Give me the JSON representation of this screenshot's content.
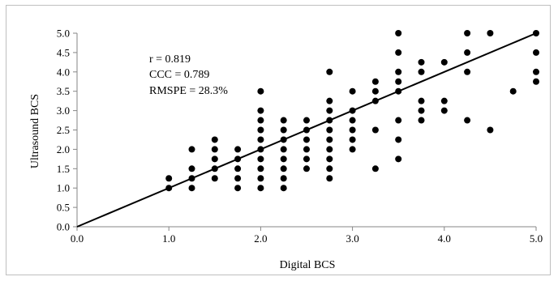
{
  "chart_data": {
    "type": "scatter",
    "xlabel": "Digital BCS",
    "ylabel": "Ultrasound BCS",
    "xlim": [
      0.0,
      5.0
    ],
    "ylim": [
      0.0,
      5.0
    ],
    "x_ticks": [
      "0.0",
      "1.0",
      "2.0",
      "3.0",
      "4.0",
      "5.0"
    ],
    "y_ticks": [
      "0.0",
      "0.5",
      "1.0",
      "1.5",
      "2.0",
      "2.5",
      "3.0",
      "3.5",
      "4.0",
      "4.5",
      "5.0"
    ],
    "grid": false,
    "legend": "none",
    "marker_color": "#000000",
    "line_color": "#000000",
    "annotations": [
      "r = 0.819",
      "CCC = 0.789",
      "RMSPE = 28.3%"
    ],
    "reference_line": {
      "name": "",
      "x": [
        0.0,
        5.0
      ],
      "y": [
        0.0,
        5.0
      ]
    },
    "points": [
      [
        1.0,
        1.0
      ],
      [
        1.0,
        1.25
      ],
      [
        1.25,
        1.0
      ],
      [
        1.25,
        1.25
      ],
      [
        1.25,
        1.5
      ],
      [
        1.25,
        2.0
      ],
      [
        1.5,
        1.25
      ],
      [
        1.5,
        1.5
      ],
      [
        1.5,
        1.75
      ],
      [
        1.5,
        2.0
      ],
      [
        1.5,
        2.25
      ],
      [
        1.75,
        1.0
      ],
      [
        1.75,
        1.25
      ],
      [
        1.75,
        1.5
      ],
      [
        1.75,
        1.75
      ],
      [
        1.75,
        2.0
      ],
      [
        2.0,
        1.0
      ],
      [
        2.0,
        1.25
      ],
      [
        2.0,
        1.5
      ],
      [
        2.0,
        1.75
      ],
      [
        2.0,
        2.0
      ],
      [
        2.0,
        2.25
      ],
      [
        2.0,
        2.5
      ],
      [
        2.0,
        2.75
      ],
      [
        2.0,
        3.0
      ],
      [
        2.0,
        3.5
      ],
      [
        2.25,
        1.0
      ],
      [
        2.25,
        1.25
      ],
      [
        2.25,
        1.5
      ],
      [
        2.25,
        1.75
      ],
      [
        2.25,
        2.0
      ],
      [
        2.25,
        2.25
      ],
      [
        2.25,
        2.5
      ],
      [
        2.25,
        2.75
      ],
      [
        2.5,
        1.5
      ],
      [
        2.5,
        1.75
      ],
      [
        2.5,
        2.0
      ],
      [
        2.5,
        2.25
      ],
      [
        2.5,
        2.5
      ],
      [
        2.5,
        2.75
      ],
      [
        2.75,
        1.25
      ],
      [
        2.75,
        1.5
      ],
      [
        2.75,
        1.75
      ],
      [
        2.75,
        2.0
      ],
      [
        2.75,
        2.25
      ],
      [
        2.75,
        2.5
      ],
      [
        2.75,
        2.75
      ],
      [
        2.75,
        3.0
      ],
      [
        2.75,
        3.25
      ],
      [
        2.75,
        4.0
      ],
      [
        3.0,
        2.0
      ],
      [
        3.0,
        2.25
      ],
      [
        3.0,
        2.5
      ],
      [
        3.0,
        2.75
      ],
      [
        3.0,
        3.0
      ],
      [
        3.0,
        3.5
      ],
      [
        3.25,
        1.5
      ],
      [
        3.25,
        2.5
      ],
      [
        3.25,
        3.25
      ],
      [
        3.25,
        3.5
      ],
      [
        3.25,
        3.75
      ],
      [
        3.5,
        1.75
      ],
      [
        3.5,
        2.25
      ],
      [
        3.5,
        2.75
      ],
      [
        3.5,
        3.5
      ],
      [
        3.5,
        3.75
      ],
      [
        3.5,
        4.0
      ],
      [
        3.5,
        4.5
      ],
      [
        3.5,
        5.0
      ],
      [
        3.75,
        2.75
      ],
      [
        3.75,
        3.0
      ],
      [
        3.75,
        3.25
      ],
      [
        3.75,
        4.0
      ],
      [
        3.75,
        4.25
      ],
      [
        4.0,
        3.0
      ],
      [
        4.0,
        3.25
      ],
      [
        4.0,
        4.25
      ],
      [
        4.25,
        2.75
      ],
      [
        4.25,
        4.0
      ],
      [
        4.25,
        4.5
      ],
      [
        4.25,
        5.0
      ],
      [
        4.5,
        2.5
      ],
      [
        4.5,
        5.0
      ],
      [
        4.75,
        3.5
      ],
      [
        5.0,
        3.75
      ],
      [
        5.0,
        4.0
      ],
      [
        5.0,
        4.5
      ],
      [
        5.0,
        5.0
      ]
    ]
  }
}
